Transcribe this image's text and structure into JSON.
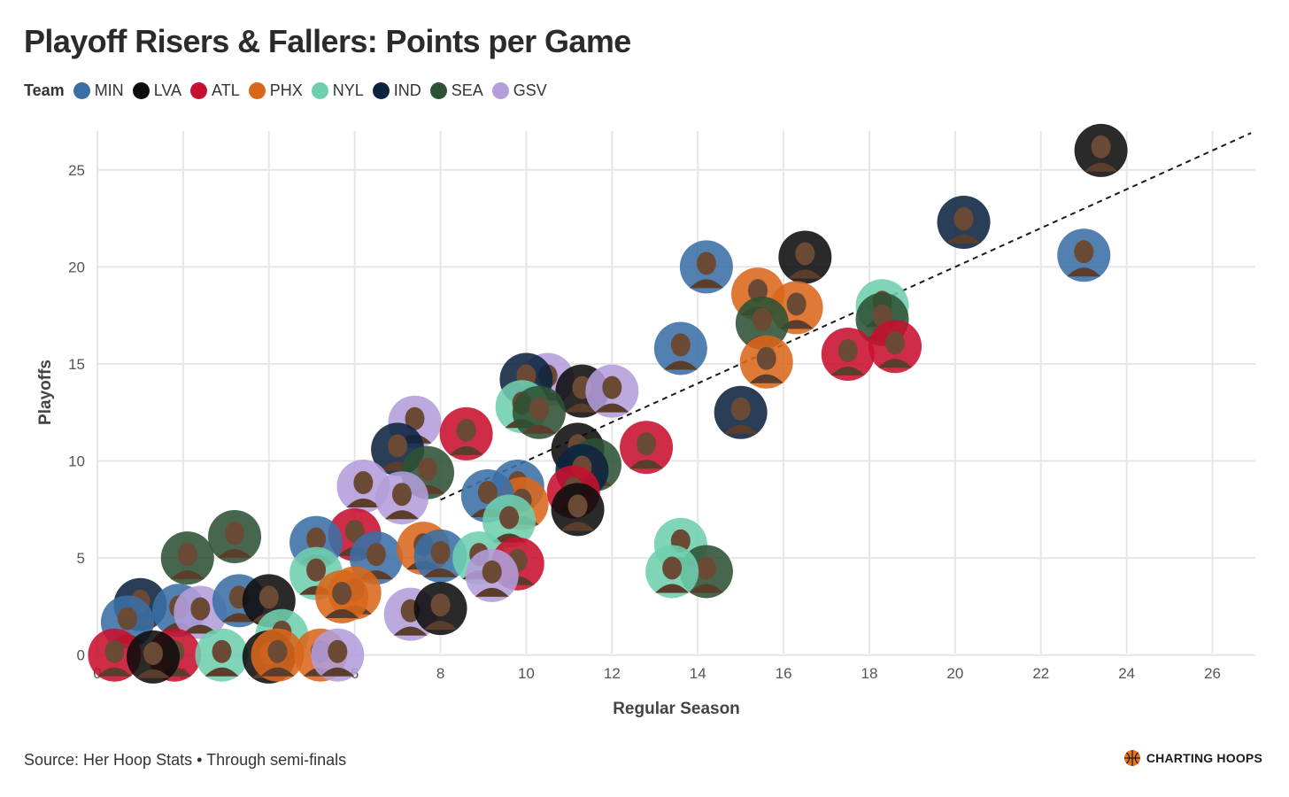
{
  "title": "Playoff Risers & Fallers: Points per Game",
  "legend": {
    "title": "Team",
    "teams": [
      {
        "name": "MIN",
        "color": "#3a6fa6"
      },
      {
        "name": "LVA",
        "color": "#0d0d0d"
      },
      {
        "name": "ATL",
        "color": "#c8102e"
      },
      {
        "name": "PHX",
        "color": "#d9661b"
      },
      {
        "name": "NYL",
        "color": "#6ecfae"
      },
      {
        "name": "IND",
        "color": "#0c2340"
      },
      {
        "name": "SEA",
        "color": "#2c5234"
      },
      {
        "name": "GSV",
        "color": "#b39ddb"
      }
    ]
  },
  "caption": "Source: Her Hoop Stats • Through semi-finals",
  "brand": "CHARTING HOOPS",
  "chart_data": {
    "type": "scatter",
    "xlabel": "Regular Season",
    "ylabel": "Playoffs",
    "xlim": [
      0,
      27
    ],
    "ylim": [
      -1.2,
      27
    ],
    "x_ticks": [
      0,
      2,
      4,
      6,
      8,
      10,
      12,
      14,
      16,
      18,
      20,
      22,
      24,
      26
    ],
    "y_ticks": [
      0,
      5,
      10,
      15,
      20,
      25
    ],
    "grid": true,
    "reference_line": "y = x",
    "points": [
      {
        "team": "LVA",
        "x": 23.4,
        "y": 26.0
      },
      {
        "team": "IND",
        "x": 20.2,
        "y": 22.3
      },
      {
        "team": "MIN",
        "x": 23.0,
        "y": 20.6
      },
      {
        "team": "LVA",
        "x": 16.5,
        "y": 20.5
      },
      {
        "team": "MIN",
        "x": 14.2,
        "y": 20.0
      },
      {
        "team": "PHX",
        "x": 15.4,
        "y": 18.6
      },
      {
        "team": "PHX",
        "x": 16.3,
        "y": 17.9
      },
      {
        "team": "NYL",
        "x": 18.3,
        "y": 18.0
      },
      {
        "team": "SEA",
        "x": 15.5,
        "y": 17.1
      },
      {
        "team": "SEA",
        "x": 18.3,
        "y": 17.3
      },
      {
        "team": "ATL",
        "x": 18.6,
        "y": 15.9
      },
      {
        "team": "ATL",
        "x": 17.5,
        "y": 15.5
      },
      {
        "team": "PHX",
        "x": 15.6,
        "y": 15.1
      },
      {
        "team": "MIN",
        "x": 13.6,
        "y": 15.8
      },
      {
        "team": "IND",
        "x": 15.0,
        "y": 12.5
      },
      {
        "team": "GSV",
        "x": 10.5,
        "y": 14.2
      },
      {
        "team": "IND",
        "x": 10.0,
        "y": 14.2
      },
      {
        "team": "LVA",
        "x": 11.3,
        "y": 13.6
      },
      {
        "team": "GSV",
        "x": 12.0,
        "y": 13.6
      },
      {
        "team": "NYL",
        "x": 9.9,
        "y": 12.8
      },
      {
        "team": "SEA",
        "x": 10.3,
        "y": 12.5
      },
      {
        "team": "ATL",
        "x": 12.8,
        "y": 10.7
      },
      {
        "team": "LVA",
        "x": 11.2,
        "y": 10.6
      },
      {
        "team": "SEA",
        "x": 11.6,
        "y": 9.8
      },
      {
        "team": "IND",
        "x": 11.3,
        "y": 9.5
      },
      {
        "team": "ATL",
        "x": 11.1,
        "y": 8.4
      },
      {
        "team": "LVA",
        "x": 11.2,
        "y": 7.5
      },
      {
        "team": "GSV",
        "x": 7.4,
        "y": 12.0
      },
      {
        "team": "ATL",
        "x": 8.6,
        "y": 11.4
      },
      {
        "team": "IND",
        "x": 7.0,
        "y": 10.6
      },
      {
        "team": "SEA",
        "x": 7.7,
        "y": 9.4
      },
      {
        "team": "GSV",
        "x": 6.2,
        "y": 8.7
      },
      {
        "team": "GSV",
        "x": 7.1,
        "y": 8.1
      },
      {
        "team": "MIN",
        "x": 9.8,
        "y": 8.7
      },
      {
        "team": "PHX",
        "x": 9.9,
        "y": 7.8
      },
      {
        "team": "MIN",
        "x": 9.1,
        "y": 8.2
      },
      {
        "team": "NYL",
        "x": 9.6,
        "y": 6.9
      },
      {
        "team": "ATL",
        "x": 6.0,
        "y": 6.2
      },
      {
        "team": "MIN",
        "x": 5.1,
        "y": 5.8
      },
      {
        "team": "SEA",
        "x": 3.2,
        "y": 6.1
      },
      {
        "team": "SEA",
        "x": 2.1,
        "y": 5.0
      },
      {
        "team": "MIN",
        "x": 6.5,
        "y": 5.0
      },
      {
        "team": "PHX",
        "x": 7.6,
        "y": 5.5
      },
      {
        "team": "MIN",
        "x": 8.0,
        "y": 5.1
      },
      {
        "team": "NYL",
        "x": 8.9,
        "y": 5.0
      },
      {
        "team": "ATL",
        "x": 9.8,
        "y": 4.7
      },
      {
        "team": "GSV",
        "x": 9.2,
        "y": 4.1
      },
      {
        "team": "NYL",
        "x": 13.6,
        "y": 5.7
      },
      {
        "team": "SEA",
        "x": 14.2,
        "y": 4.3
      },
      {
        "team": "NYL",
        "x": 13.4,
        "y": 4.3
      },
      {
        "team": "NYL",
        "x": 5.1,
        "y": 4.2
      },
      {
        "team": "PHX",
        "x": 6.0,
        "y": 3.2
      },
      {
        "team": "PHX",
        "x": 5.7,
        "y": 3.0
      },
      {
        "team": "GSV",
        "x": 7.3,
        "y": 2.1
      },
      {
        "team": "LVA",
        "x": 8.0,
        "y": 2.4
      },
      {
        "team": "IND",
        "x": 1.0,
        "y": 2.6
      },
      {
        "team": "MIN",
        "x": 0.7,
        "y": 1.7
      },
      {
        "team": "MIN",
        "x": 1.9,
        "y": 2.3
      },
      {
        "team": "GSV",
        "x": 2.4,
        "y": 2.2
      },
      {
        "team": "MIN",
        "x": 3.3,
        "y": 2.8
      },
      {
        "team": "LVA",
        "x": 4.0,
        "y": 2.8
      },
      {
        "team": "NYL",
        "x": 4.3,
        "y": 1.0
      },
      {
        "team": "ATL",
        "x": 0.4,
        "y": 0.0
      },
      {
        "team": "ATL",
        "x": 1.8,
        "y": 0.0
      },
      {
        "team": "LVA",
        "x": 1.3,
        "y": -0.1
      },
      {
        "team": "NYL",
        "x": 2.9,
        "y": 0.0
      },
      {
        "team": "LVA",
        "x": 4.0,
        "y": -0.1
      },
      {
        "team": "PHX",
        "x": 4.2,
        "y": 0.0
      },
      {
        "team": "PHX",
        "x": 5.2,
        "y": 0.0
      },
      {
        "team": "GSV",
        "x": 5.6,
        "y": 0.0
      }
    ]
  }
}
